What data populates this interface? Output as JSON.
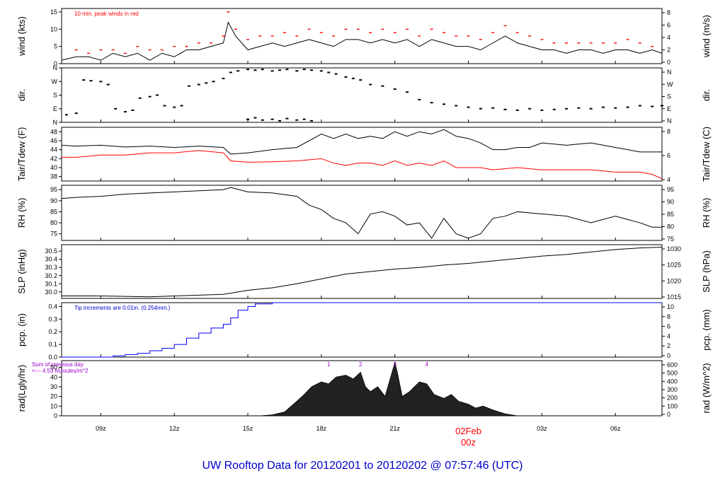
{
  "title": "UW Rooftop Data for 20120201  to  20120202 @ 07:57:46  (UTC)",
  "colors": {
    "line": "#000000",
    "peak": "#ff0000",
    "dew": "#ff0000",
    "precip": "#0000ff",
    "note_precip": "#0000cc",
    "note_rad": "#9900cc",
    "day_label": "#ff0000",
    "title": "#0000cc"
  },
  "chart_data": {
    "type": "line",
    "x_axis": {
      "ticks": [
        "09z",
        "12z",
        "15z",
        "18z",
        "21z",
        "",
        "03z",
        "06z"
      ],
      "tick_hours": [
        9,
        12,
        15,
        18,
        21,
        24,
        27,
        30
      ],
      "range_hours": [
        7.4,
        31.9
      ],
      "day_label": "02Feb",
      "day_label_2": "00z"
    },
    "panels": [
      {
        "id": "wind",
        "left_label": "wind (kts)",
        "right_label": "wind (m/s)",
        "left_ticks": [
          "0",
          "5",
          "10",
          "15"
        ],
        "left_range": [
          0,
          16
        ],
        "right_ticks": [
          "0",
          "2",
          "4",
          "6",
          "8"
        ],
        "annotation": "10 min. peak winds in red",
        "series": [
          {
            "x": [
              7.4,
              8,
              8.5,
              9,
              9.5,
              10,
              10.5,
              11,
              11.5,
              12,
              12.5,
              13,
              13.5,
              14,
              14.2,
              14.5,
              15,
              15.5,
              16,
              16.5,
              17,
              17.5,
              18,
              18.5,
              19,
              19.5,
              20,
              20.5,
              21,
              21.5,
              22,
              22.5,
              23,
              23.5,
              24,
              24.5,
              25,
              25.5,
              26,
              26.5,
              27,
              27.5,
              28,
              28.5,
              29,
              29.5,
              30,
              30.5,
              31,
              31.5,
              31.9
            ],
            "y": [
              1,
              2,
              2,
              1,
              3,
              2,
              3,
              1,
              3,
              2,
              4,
              4,
              5,
              6,
              12,
              8,
              4,
              5,
              6,
              5,
              6,
              7,
              6,
              5,
              7,
              7,
              6,
              7,
              6,
              7,
              5,
              7,
              6,
              5,
              5,
              4,
              6,
              8,
              6,
              5,
              4,
              4,
              3,
              4,
              4,
              3,
              4,
              4,
              3,
              4,
              3
            ]
          },
          {
            "name": "peak",
            "x": [
              8,
              8.5,
              9,
              9.5,
              10,
              10.5,
              11,
              11.5,
              12,
              12.5,
              13,
              13.5,
              14,
              14.2,
              14.5,
              15,
              15.5,
              16,
              16.5,
              17,
              17.5,
              18,
              18.5,
              19,
              19.5,
              20,
              20.5,
              21,
              21.5,
              22,
              22.5,
              23,
              23.5,
              24,
              24.5,
              25,
              25.5,
              26,
              26.5,
              27,
              27.5,
              28,
              28.5,
              29,
              29.5,
              30,
              30.5,
              31,
              31.5
            ],
            "y": [
              4,
              3,
              4,
              4,
              3,
              5,
              4,
              4,
              5,
              5,
              6,
              6,
              8,
              15,
              10,
              7,
              8,
              8,
              9,
              8,
              10,
              9,
              8,
              10,
              10,
              9,
              10,
              9,
              10,
              8,
              10,
              9,
              8,
              8,
              7,
              9,
              11,
              9,
              8,
              7,
              6,
              6,
              6,
              6,
              6,
              6,
              7,
              6,
              5
            ]
          }
        ]
      },
      {
        "id": "dir",
        "left_label": "dir.",
        "right_label": "dir.",
        "left_ticks": [
          "N",
          "E",
          "S",
          "W",
          "N"
        ],
        "left_range": [
          0,
          360
        ],
        "right_ticks": [
          "N",
          "E",
          "S",
          "W",
          "N"
        ],
        "series": [
          {
            "x": [
              7.6,
              8,
              8.3,
              8.6,
              9,
              9.3,
              9.6,
              10,
              10.3,
              10.6,
              11,
              11.3,
              11.6,
              12,
              12.3,
              12.6,
              13,
              13.3,
              13.6,
              14,
              14.3,
              14.6,
              15,
              15.3,
              15.6,
              16,
              16.3,
              16.6,
              17,
              17.3,
              17.6,
              18,
              18.3,
              18.6,
              19,
              19.3,
              19.6,
              20,
              20.5,
              21,
              21.5,
              22,
              22.5,
              23,
              23.5,
              24,
              24.5,
              25,
              25.5,
              26,
              26.5,
              27,
              27.5,
              28,
              28.5,
              29,
              29.5,
              30,
              30.5,
              31,
              31.5,
              31.9
            ],
            "y": [
              50,
              60,
              280,
              275,
              270,
              250,
              90,
              70,
              80,
              160,
              170,
              180,
              110,
              100,
              110,
              240,
              250,
              260,
              270,
              290,
              330,
              340,
              350,
              345,
              350,
              340,
              345,
              350,
              340,
              350,
              345,
              340,
              330,
              320,
              300,
              290,
              280,
              250,
              240,
              220,
              200,
              150,
              130,
              120,
              110,
              100,
              90,
              95,
              85,
              80,
              90,
              80,
              85,
              90,
              95,
              90,
              100,
              95,
              100,
              110,
              105,
              110
            ]
          },
          {
            "x": [
              15,
              15.3,
              15.6,
              16,
              16.3,
              16.6,
              17,
              17.3,
              17.6
            ],
            "y": [
              20,
              30,
              15,
              20,
              10,
              25,
              15,
              20,
              10
            ]
          }
        ]
      },
      {
        "id": "temp",
        "left_label": "Tair/Tdew (F)",
        "right_label": "Tair/Tdew (C)",
        "left_ticks": [
          "38",
          "40",
          "42",
          "44",
          "46",
          "48"
        ],
        "left_range": [
          37,
          49
        ],
        "right_ticks": [
          "4",
          "6",
          "8"
        ],
        "series": [
          {
            "name": "Tair",
            "x": [
              7.4,
              8,
              9,
              10,
              11,
              12,
              13,
              14,
              14.3,
              15,
              16,
              17,
              18,
              18.5,
              19,
              19.5,
              20,
              20.5,
              21,
              21.5,
              22,
              22.5,
              23,
              23.5,
              24,
              24.5,
              25,
              25.5,
              26,
              26.5,
              27,
              28,
              29,
              30,
              31,
              31.9
            ],
            "y": [
              45,
              44.8,
              45,
              44.6,
              44.8,
              44.5,
              44.8,
              44.5,
              43,
              43.3,
              44,
              44.5,
              47.5,
              46.5,
              47.5,
              46.5,
              47,
              46.5,
              48,
              47,
              48,
              47.5,
              48.5,
              47,
              46.5,
              45.5,
              44,
              44,
              44.5,
              44.5,
              45.5,
              45,
              45.5,
              44.5,
              43.5,
              43.5
            ]
          },
          {
            "name": "Tdew",
            "x": [
              7.4,
              8,
              9,
              10,
              11,
              12,
              13,
              14,
              14.3,
              15,
              16,
              17,
              18,
              18.5,
              19,
              19.5,
              20,
              20.5,
              21,
              21.5,
              22,
              22.5,
              23,
              23.5,
              24,
              24.5,
              25,
              26,
              27,
              28,
              29,
              30,
              31,
              31.5,
              31.9
            ],
            "y": [
              42.3,
              42.3,
              42.8,
              42.8,
              43.3,
              43.3,
              43.8,
              43.3,
              41.5,
              41.2,
              41.3,
              41.5,
              42,
              41,
              40.5,
              41,
              41,
              40.5,
              41.5,
              40.5,
              41,
              40.5,
              41.5,
              40,
              40,
              40,
              39.5,
              40,
              39.5,
              39.5,
              39.5,
              39,
              39,
              38.5,
              37.5
            ]
          }
        ]
      },
      {
        "id": "rh",
        "left_label": "RH (%)",
        "right_label": "RH (%)",
        "left_ticks": [
          "75",
          "80",
          "85",
          "90",
          "95"
        ],
        "left_range": [
          72,
          97
        ],
        "right_ticks": [
          "75",
          "80",
          "85",
          "90",
          "95"
        ],
        "series": [
          {
            "x": [
              7.4,
              8,
              9,
              10,
              11,
              12,
              13,
              14,
              14.3,
              15,
              16,
              17,
              17.5,
              18,
              18.5,
              19,
              19.5,
              20,
              20.5,
              21,
              21.5,
              22,
              22.5,
              23,
              23.5,
              24,
              24.5,
              25,
              25.5,
              26,
              26.5,
              27,
              28,
              29,
              30,
              31,
              31.5,
              31.9
            ],
            "y": [
              91,
              91.5,
              92,
              93,
              93.5,
              94,
              94.5,
              95,
              96,
              94,
              93.5,
              92,
              88,
              86,
              82,
              80,
              75,
              84,
              85,
              83,
              79,
              80,
              73,
              82,
              75,
              73,
              75,
              82,
              83,
              85,
              84.5,
              84,
              83,
              80,
              83,
              80,
              78,
              78
            ]
          }
        ]
      },
      {
        "id": "slp",
        "left_label": "SLP (inHg)",
        "right_label": "SLP (hPa)",
        "left_ticks": [
          "30.0",
          "30.1",
          "30.2",
          "30.3",
          "30.4",
          "30.5"
        ],
        "left_range": [
          29.92,
          30.58
        ],
        "right_ticks": [
          "1015",
          "1020",
          "1025",
          "1030"
        ],
        "series": [
          {
            "x": [
              7.4,
              9,
              11,
              12,
              13,
              14,
              15,
              16,
              17,
              18,
              19,
              20,
              21,
              22,
              23,
              24,
              25,
              26,
              27,
              28,
              29,
              30,
              31,
              31.9
            ],
            "y": [
              29.95,
              29.95,
              29.94,
              29.95,
              29.96,
              29.97,
              30.02,
              30.05,
              30.1,
              30.16,
              30.22,
              30.25,
              30.28,
              30.3,
              30.33,
              30.35,
              30.38,
              30.41,
              30.44,
              30.46,
              30.49,
              30.52,
              30.54,
              30.55
            ]
          }
        ]
      },
      {
        "id": "pcp",
        "left_label": "pcp. (in)",
        "right_label": "pcp. (mm)",
        "left_ticks": [
          "0.0",
          "0.1",
          "0.2",
          "0.3",
          "0.4"
        ],
        "left_range": [
          0,
          0.43
        ],
        "right_ticks": [
          "0",
          "2",
          "4",
          "6",
          "8",
          "10"
        ],
        "annotation": "Tip increments are 0.01in. (0.254mm.)",
        "series": [
          {
            "x": [
              7.4,
              9,
              9.5,
              10,
              10.5,
              11,
              11.5,
              12,
              12.5,
              13,
              13.5,
              14,
              14.3,
              14.6,
              15,
              15.3,
              15.6,
              16,
              31.9
            ],
            "y": [
              0,
              0,
              0.01,
              0.02,
              0.03,
              0.05,
              0.07,
              0.1,
              0.15,
              0.19,
              0.23,
              0.26,
              0.31,
              0.37,
              0.4,
              0.42,
              0.42,
              0.43,
              0.43
            ]
          }
        ]
      },
      {
        "id": "rad",
        "left_label": "rad(Lgly/hr)",
        "right_label": "rad (W/m^2)",
        "left_ticks": [
          "0",
          "10",
          "20",
          "30",
          "40",
          "50"
        ],
        "left_range": [
          0,
          57
        ],
        "right_ticks": [
          "0",
          "100",
          "200",
          "300",
          "400",
          "500",
          "600"
        ],
        "annotation": "Sum of previous day",
        "annotation_2": "<--- 4.53 MJoules/m^2",
        "markers": [
          "1",
          "2",
          "3",
          "4"
        ],
        "marker_hours": [
          18.3,
          19.6,
          21,
          22.3
        ],
        "series": [
          {
            "x": [
              15.5,
              16,
              16.5,
              17,
              17.3,
              17.6,
              18,
              18.3,
              18.6,
              19,
              19.3,
              19.6,
              19.8,
              20,
              20.3,
              20.6,
              21,
              21.1,
              21.3,
              21.6,
              22,
              22.3,
              22.6,
              23,
              23.3,
              23.6,
              24,
              24.3,
              24.6,
              25,
              25.5,
              26
            ],
            "y": [
              0,
              1,
              4,
              15,
              22,
              30,
              35,
              33,
              40,
              42,
              38,
              45,
              30,
              25,
              30,
              20,
              55,
              45,
              20,
              25,
              35,
              33,
              22,
              18,
              22,
              15,
              12,
              8,
              10,
              6,
              2,
              0
            ]
          }
        ]
      }
    ]
  }
}
